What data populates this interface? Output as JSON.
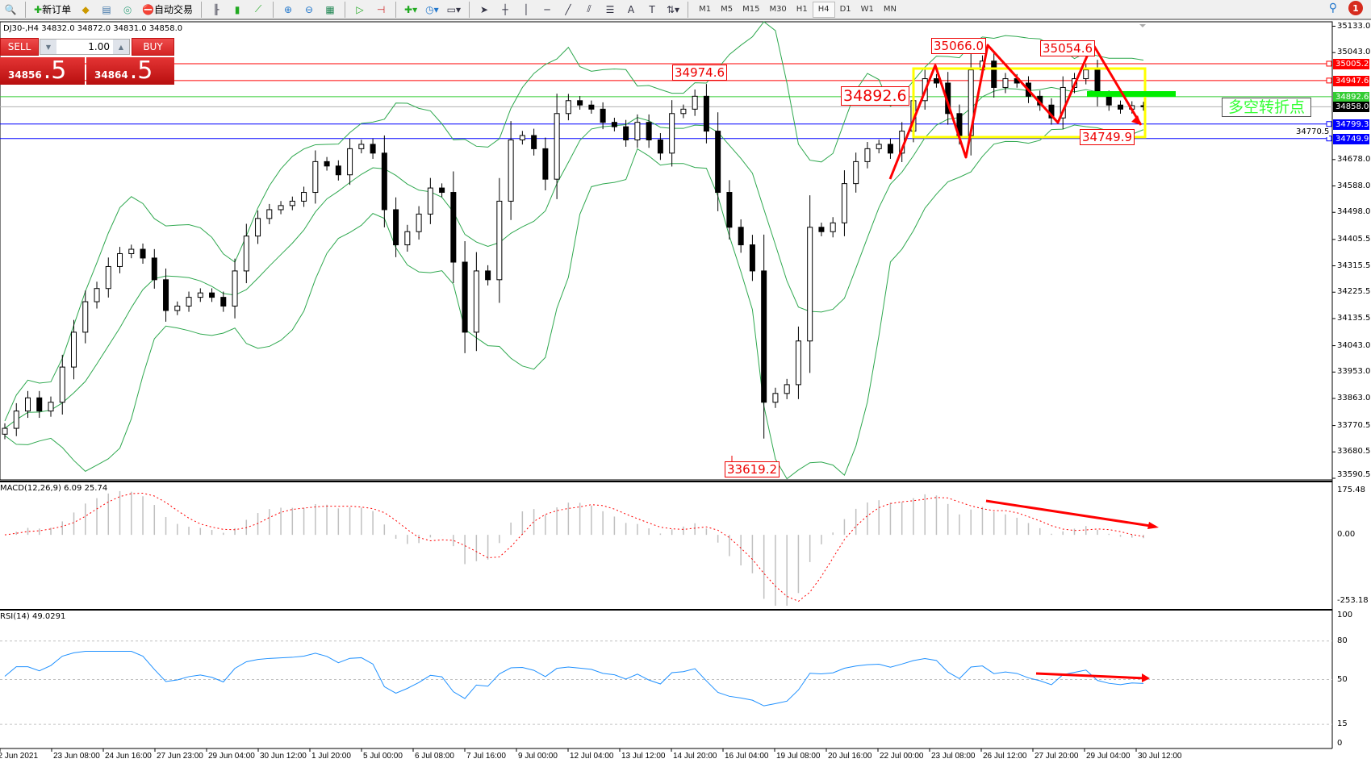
{
  "toolbar": {
    "new_order": "新订单",
    "auto_trading": "自动交易",
    "timeframes": [
      "M1",
      "M5",
      "M15",
      "M30",
      "H1",
      "H4",
      "D1",
      "W1",
      "MN"
    ],
    "active_timeframe": "H4",
    "notifications": "1"
  },
  "chart": {
    "title": "DJ30-,H4  34832.0 34872.0 34831.0 34858.0",
    "trade_panel": {
      "sell": "SELL",
      "buy": "BUY",
      "lot": "1.00",
      "bid_main": "34856",
      "bid_pips": ".5",
      "ask_main": "34864",
      "ask_pips": ".5"
    },
    "annotations": {
      "high1": "35066.0",
      "high2": "35054.6",
      "high3": "34974.6",
      "mid": "34892.6",
      "low_box": "34749.9",
      "low": "33619.2",
      "note": "多空转折点"
    },
    "colors": {
      "bull": "#ffffff",
      "bear": "#000000",
      "bands": "#2fa84f",
      "resistance": "#ff0000",
      "support": "#0000ff",
      "pivot": "#33cc33",
      "box": "#ffff00",
      "arrows": "#ff0000",
      "macd_signal": "#ff0000",
      "rsi": "#1e90ff"
    }
  },
  "chart_data": {
    "type": "candlestick",
    "symbol": "DJ30-",
    "timeframe": "H4",
    "price_ylim": [
      33590.5,
      35133.0
    ],
    "price_ticks": [
      35133.0,
      35043.0,
      34678.0,
      34588.0,
      34498.0,
      34405.5,
      34315.5,
      34225.5,
      34135.5,
      34043.0,
      33953.0,
      33863.0,
      33770.5,
      33680.5,
      33590.5
    ],
    "hidden_tick": "34770.5",
    "levels": [
      {
        "value": "35005.2",
        "color": "#ff0000"
      },
      {
        "value": "34947.6",
        "color": "#ff0000"
      },
      {
        "value": "34892.6",
        "color": "#33cc33"
      },
      {
        "value": "34858.0",
        "color": "#000000"
      },
      {
        "value": "34799.3",
        "color": "#0000ff"
      },
      {
        "value": "34749.9",
        "color": "#0000ff"
      }
    ],
    "closes": [
      33761,
      33820,
      33865,
      33820,
      33850,
      33970,
      34089,
      34193,
      34238,
      34313,
      34357,
      34372,
      34342,
      34268,
      34163,
      34178,
      34208,
      34223,
      34208,
      34178,
      34298,
      34417,
      34477,
      34507,
      34521,
      34536,
      34566,
      34671,
      34656,
      34626,
      34715,
      34730,
      34700,
      34507,
      34387,
      34432,
      34492,
      34581,
      34566,
      34328,
      34089,
      34298,
      34268,
      34536,
      34745,
      34760,
      34715,
      34611,
      34835,
      34879,
      34864,
      34850,
      34805,
      34790,
      34745,
      34805,
      34745,
      34700,
      34835,
      34850,
      34894,
      34775,
      34566,
      34447,
      34387,
      34298,
      33850,
      33880,
      33910,
      34059,
      34447,
      34432,
      34462,
      34596,
      34671,
      34715,
      34730,
      34700,
      34775,
      34879,
      34954,
      34939,
      34835,
      34760,
      34984,
      35014,
      34924,
      34954,
      34939,
      34894,
      34864,
      34820,
      34924,
      34954,
      34984,
      34894,
      34864,
      34850,
      34862,
      34858
    ],
    "macd": {
      "label": "MACD(12,26,9) 6.09 25.74",
      "ylim": [
        -253.18,
        175.48
      ],
      "ticks": [
        "175.48",
        "0.00",
        "-253.18"
      ]
    },
    "rsi": {
      "label": "RSI(14) 49.0291",
      "ylim": [
        0,
        100
      ],
      "ticks": [
        "100",
        "80",
        "50",
        "15",
        "0"
      ],
      "levels": [
        80,
        50,
        15
      ]
    },
    "x_labels": [
      "22 Jun 2021",
      "23 Jun 08:00",
      "24 Jun 16:00",
      "27 Jun 23:00",
      "29 Jun 04:00",
      "30 Jun 12:00",
      "1 Jul 20:00",
      "5 Jul 00:00",
      "6 Jul 08:00",
      "7 Jul 16:00",
      "9 Jul 00:00",
      "12 Jul 04:00",
      "13 Jul 12:00",
      "14 Jul 20:00",
      "16 Jul 04:00",
      "19 Jul 08:00",
      "20 Jul 16:00",
      "22 Jul 00:00",
      "23 Jul 08:00",
      "26 Jul 12:00",
      "27 Jul 20:00",
      "29 Jul 04:00",
      "30 Jul 12:00"
    ]
  }
}
